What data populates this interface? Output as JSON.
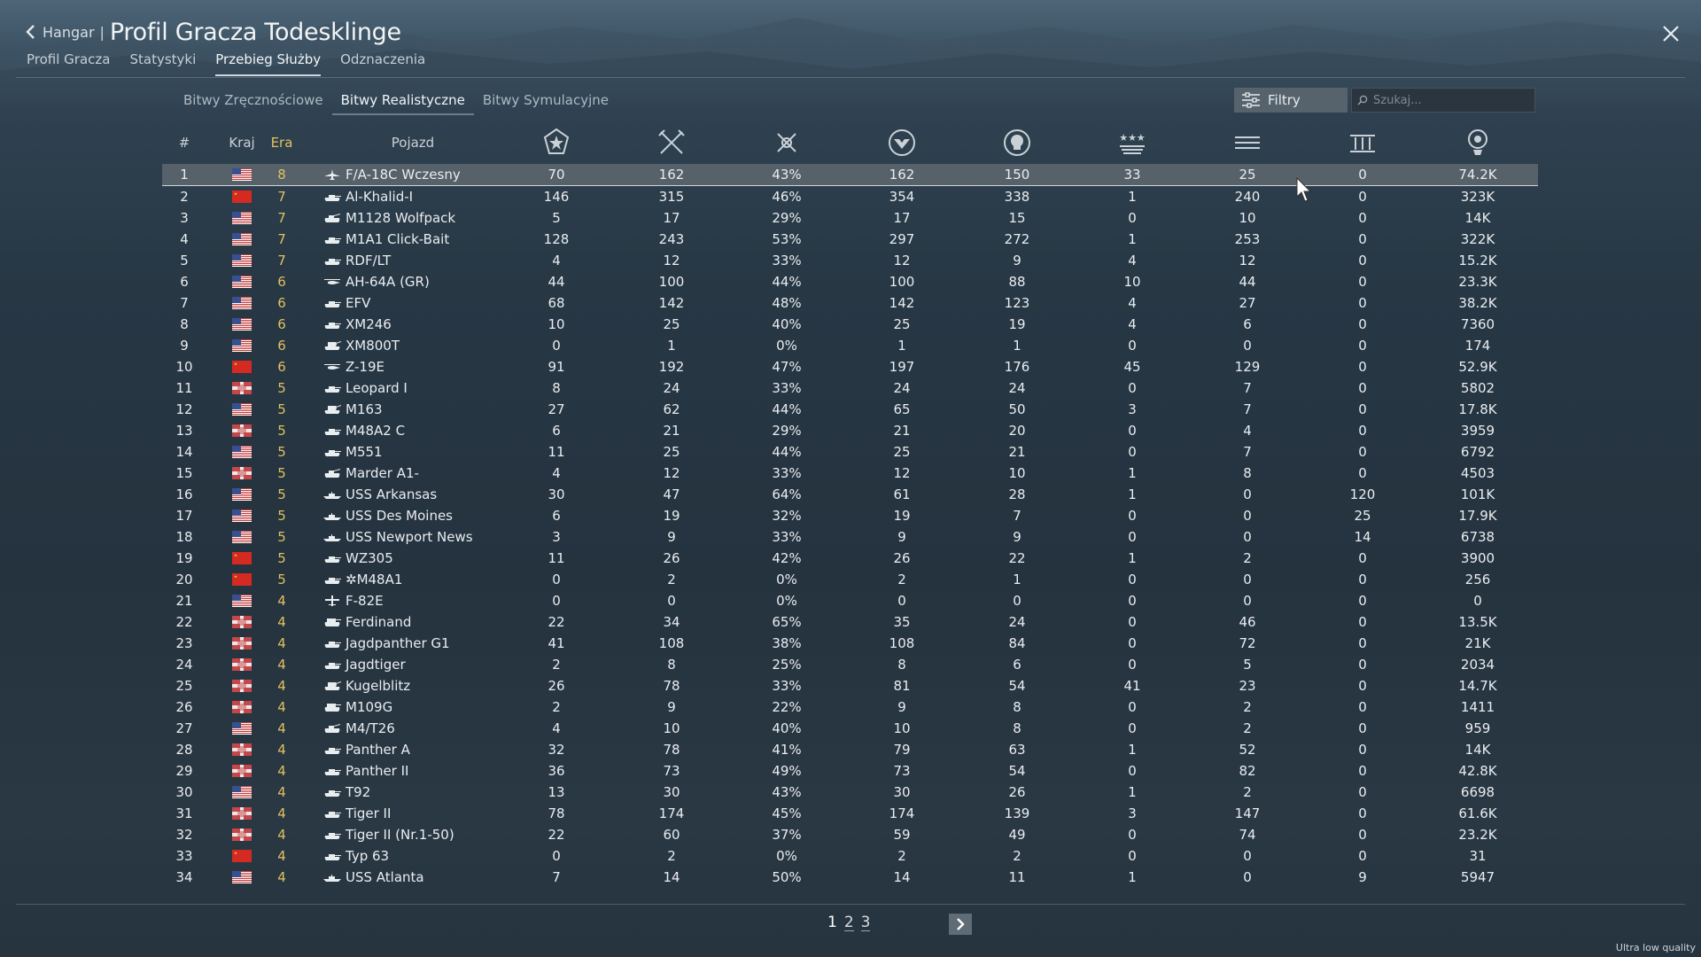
{
  "header": {
    "back_label": "Hangar",
    "separator": "|",
    "title": "Profil Gracza Todesklinge"
  },
  "nav": {
    "tabs": [
      "Profil Gracza",
      "Statystyki",
      "Przebieg Służby",
      "Odznaczenia"
    ],
    "active_index": 2
  },
  "subtabs": {
    "items": [
      "Bitwy Zręcznościowe",
      "Bitwy Realistyczne",
      "Bitwy Symulacyjne"
    ],
    "active_index": 1
  },
  "filters": {
    "label": "Filtry"
  },
  "search": {
    "placeholder": "Szukaj..."
  },
  "table": {
    "headers": {
      "num": "#",
      "country": "Kraj",
      "era": "Era",
      "vehicle": "Pojazd"
    },
    "stat_icons": [
      "battles-icon",
      "respawns-icon",
      "win-rate-icon",
      "deaths-icon",
      "kills-icon",
      "air-kills-icon",
      "ground-kills-icon",
      "naval-kills-icon",
      "research-points-icon"
    ],
    "selected_row": 0,
    "rows": [
      {
        "n": "1",
        "flag": "us",
        "era": "8",
        "type": "jet",
        "name": "F/A-18C Wczesny",
        "s": [
          "70",
          "162",
          "43%",
          "162",
          "150",
          "33",
          "25",
          "0",
          "74.2K"
        ]
      },
      {
        "n": "2",
        "flag": "cn",
        "era": "7",
        "type": "tank",
        "name": "Al-Khalid-I",
        "s": [
          "146",
          "315",
          "46%",
          "354",
          "338",
          "1",
          "240",
          "0",
          "323K"
        ]
      },
      {
        "n": "3",
        "flag": "us",
        "era": "7",
        "type": "aa",
        "name": "M1128 Wolfpack",
        "s": [
          "5",
          "17",
          "29%",
          "17",
          "15",
          "0",
          "10",
          "0",
          "14K"
        ]
      },
      {
        "n": "4",
        "flag": "us",
        "era": "7",
        "type": "tank",
        "name": "M1A1 Click-Bait",
        "s": [
          "128",
          "243",
          "53%",
          "297",
          "272",
          "1",
          "253",
          "0",
          "322K"
        ]
      },
      {
        "n": "5",
        "flag": "us",
        "era": "7",
        "type": "tank",
        "name": "RDF/LT",
        "s": [
          "4",
          "12",
          "33%",
          "12",
          "9",
          "4",
          "12",
          "0",
          "15.2K"
        ]
      },
      {
        "n": "6",
        "flag": "us",
        "era": "6",
        "type": "heli",
        "name": "AH-64A (GR)",
        "s": [
          "44",
          "100",
          "44%",
          "100",
          "88",
          "10",
          "44",
          "0",
          "23.3K"
        ]
      },
      {
        "n": "7",
        "flag": "us",
        "era": "6",
        "type": "tank",
        "name": "EFV",
        "s": [
          "68",
          "142",
          "48%",
          "142",
          "123",
          "4",
          "27",
          "0",
          "38.2K"
        ]
      },
      {
        "n": "8",
        "flag": "us",
        "era": "6",
        "type": "tank",
        "name": "XM246",
        "s": [
          "10",
          "25",
          "40%",
          "25",
          "19",
          "4",
          "6",
          "0",
          "7360"
        ]
      },
      {
        "n": "9",
        "flag": "us",
        "era": "6",
        "type": "spaa",
        "name": "XM800T",
        "s": [
          "0",
          "1",
          "0%",
          "1",
          "1",
          "0",
          "0",
          "0",
          "174"
        ]
      },
      {
        "n": "10",
        "flag": "cn",
        "era": "6",
        "type": "heli",
        "name": "Z-19E",
        "s": [
          "91",
          "192",
          "47%",
          "197",
          "176",
          "45",
          "129",
          "0",
          "52.9K"
        ]
      },
      {
        "n": "11",
        "flag": "de",
        "era": "5",
        "type": "tank",
        "name": "Leopard I",
        "s": [
          "8",
          "24",
          "33%",
          "24",
          "24",
          "0",
          "7",
          "0",
          "5802"
        ]
      },
      {
        "n": "12",
        "flag": "us",
        "era": "5",
        "type": "spaa",
        "name": "M163",
        "s": [
          "27",
          "62",
          "44%",
          "65",
          "50",
          "3",
          "7",
          "0",
          "17.8K"
        ]
      },
      {
        "n": "13",
        "flag": "de",
        "era": "5",
        "type": "tank",
        "name": "M48A2 C",
        "s": [
          "6",
          "21",
          "29%",
          "21",
          "20",
          "0",
          "4",
          "0",
          "3959"
        ]
      },
      {
        "n": "14",
        "flag": "us",
        "era": "5",
        "type": "tank",
        "name": "M551",
        "s": [
          "11",
          "25",
          "44%",
          "25",
          "21",
          "0",
          "7",
          "0",
          "6792"
        ]
      },
      {
        "n": "15",
        "flag": "de",
        "era": "5",
        "type": "aa",
        "name": "Marder A1-",
        "s": [
          "4",
          "12",
          "33%",
          "12",
          "10",
          "1",
          "8",
          "0",
          "4503"
        ]
      },
      {
        "n": "16",
        "flag": "us",
        "era": "5",
        "type": "ship",
        "name": "USS Arkansas",
        "s": [
          "30",
          "47",
          "64%",
          "61",
          "28",
          "1",
          "0",
          "120",
          "101K"
        ]
      },
      {
        "n": "17",
        "flag": "us",
        "era": "5",
        "type": "ship",
        "name": "USS Des Moines",
        "s": [
          "6",
          "19",
          "32%",
          "19",
          "7",
          "0",
          "0",
          "25",
          "17.9K"
        ]
      },
      {
        "n": "18",
        "flag": "us",
        "era": "5",
        "type": "ship",
        "name": "USS Newport News",
        "s": [
          "3",
          "9",
          "33%",
          "9",
          "9",
          "0",
          "0",
          "14",
          "6738"
        ]
      },
      {
        "n": "19",
        "flag": "cn",
        "era": "5",
        "type": "tank",
        "name": "WZ305",
        "s": [
          "11",
          "26",
          "42%",
          "26",
          "22",
          "1",
          "2",
          "0",
          "3900"
        ]
      },
      {
        "n": "20",
        "flag": "cn",
        "era": "5",
        "type": "tank",
        "name": "✲M48A1",
        "s": [
          "0",
          "2",
          "0%",
          "2",
          "1",
          "0",
          "0",
          "0",
          "256"
        ]
      },
      {
        "n": "21",
        "flag": "us",
        "era": "4",
        "type": "plane",
        "name": "F-82E",
        "s": [
          "0",
          "0",
          "0%",
          "0",
          "0",
          "0",
          "0",
          "0",
          "0"
        ]
      },
      {
        "n": "22",
        "flag": "de",
        "era": "4",
        "type": "td",
        "name": "Ferdinand",
        "s": [
          "22",
          "34",
          "65%",
          "35",
          "24",
          "0",
          "46",
          "0",
          "13.5K"
        ]
      },
      {
        "n": "23",
        "flag": "de",
        "era": "4",
        "type": "tank",
        "name": "Jagdpanther G1",
        "s": [
          "41",
          "108",
          "38%",
          "108",
          "84",
          "0",
          "72",
          "0",
          "21K"
        ]
      },
      {
        "n": "24",
        "flag": "de",
        "era": "4",
        "type": "tank",
        "name": "Jagdtiger",
        "s": [
          "2",
          "8",
          "25%",
          "8",
          "6",
          "0",
          "5",
          "0",
          "2034"
        ]
      },
      {
        "n": "25",
        "flag": "de",
        "era": "4",
        "type": "spaa",
        "name": "Kugelblitz",
        "s": [
          "26",
          "78",
          "33%",
          "81",
          "54",
          "41",
          "23",
          "0",
          "14.7K"
        ]
      },
      {
        "n": "26",
        "flag": "de",
        "era": "4",
        "type": "td",
        "name": "M109G",
        "s": [
          "2",
          "9",
          "22%",
          "9",
          "8",
          "0",
          "2",
          "0",
          "1411"
        ]
      },
      {
        "n": "27",
        "flag": "us",
        "era": "4",
        "type": "aa",
        "name": "M4/T26",
        "s": [
          "4",
          "10",
          "40%",
          "10",
          "8",
          "0",
          "2",
          "0",
          "959"
        ]
      },
      {
        "n": "28",
        "flag": "de",
        "era": "4",
        "type": "tank",
        "name": "Panther A",
        "s": [
          "32",
          "78",
          "41%",
          "79",
          "63",
          "1",
          "52",
          "0",
          "14K"
        ]
      },
      {
        "n": "29",
        "flag": "de",
        "era": "4",
        "type": "tank",
        "name": "Panther II",
        "s": [
          "36",
          "73",
          "49%",
          "73",
          "54",
          "0",
          "82",
          "0",
          "42.8K"
        ]
      },
      {
        "n": "30",
        "flag": "us",
        "era": "4",
        "type": "tank",
        "name": "T92",
        "s": [
          "13",
          "30",
          "43%",
          "30",
          "26",
          "1",
          "2",
          "0",
          "6698"
        ]
      },
      {
        "n": "31",
        "flag": "de",
        "era": "4",
        "type": "tank",
        "name": "Tiger II",
        "s": [
          "78",
          "174",
          "45%",
          "174",
          "139",
          "3",
          "147",
          "0",
          "61.6K"
        ]
      },
      {
        "n": "32",
        "flag": "de",
        "era": "4",
        "type": "tank",
        "name": "Tiger II (Nr.1-50)",
        "s": [
          "22",
          "60",
          "37%",
          "59",
          "49",
          "0",
          "74",
          "0",
          "23.2K"
        ]
      },
      {
        "n": "33",
        "flag": "cn",
        "era": "4",
        "type": "tank",
        "name": "Typ 63",
        "s": [
          "0",
          "2",
          "0%",
          "2",
          "2",
          "0",
          "0",
          "0",
          "31"
        ]
      },
      {
        "n": "34",
        "flag": "us",
        "era": "4",
        "type": "ship",
        "name": "USS Atlanta",
        "s": [
          "7",
          "14",
          "50%",
          "14",
          "11",
          "1",
          "0",
          "9",
          "5947"
        ]
      }
    ]
  },
  "pagination": {
    "pages": [
      "1",
      "2",
      "3"
    ],
    "active_index": 0
  },
  "quality_label": "Ultra low quality",
  "colors": {
    "era": "#e0c25e",
    "selected_row": "#56616a",
    "filter_button": "#56636d"
  }
}
